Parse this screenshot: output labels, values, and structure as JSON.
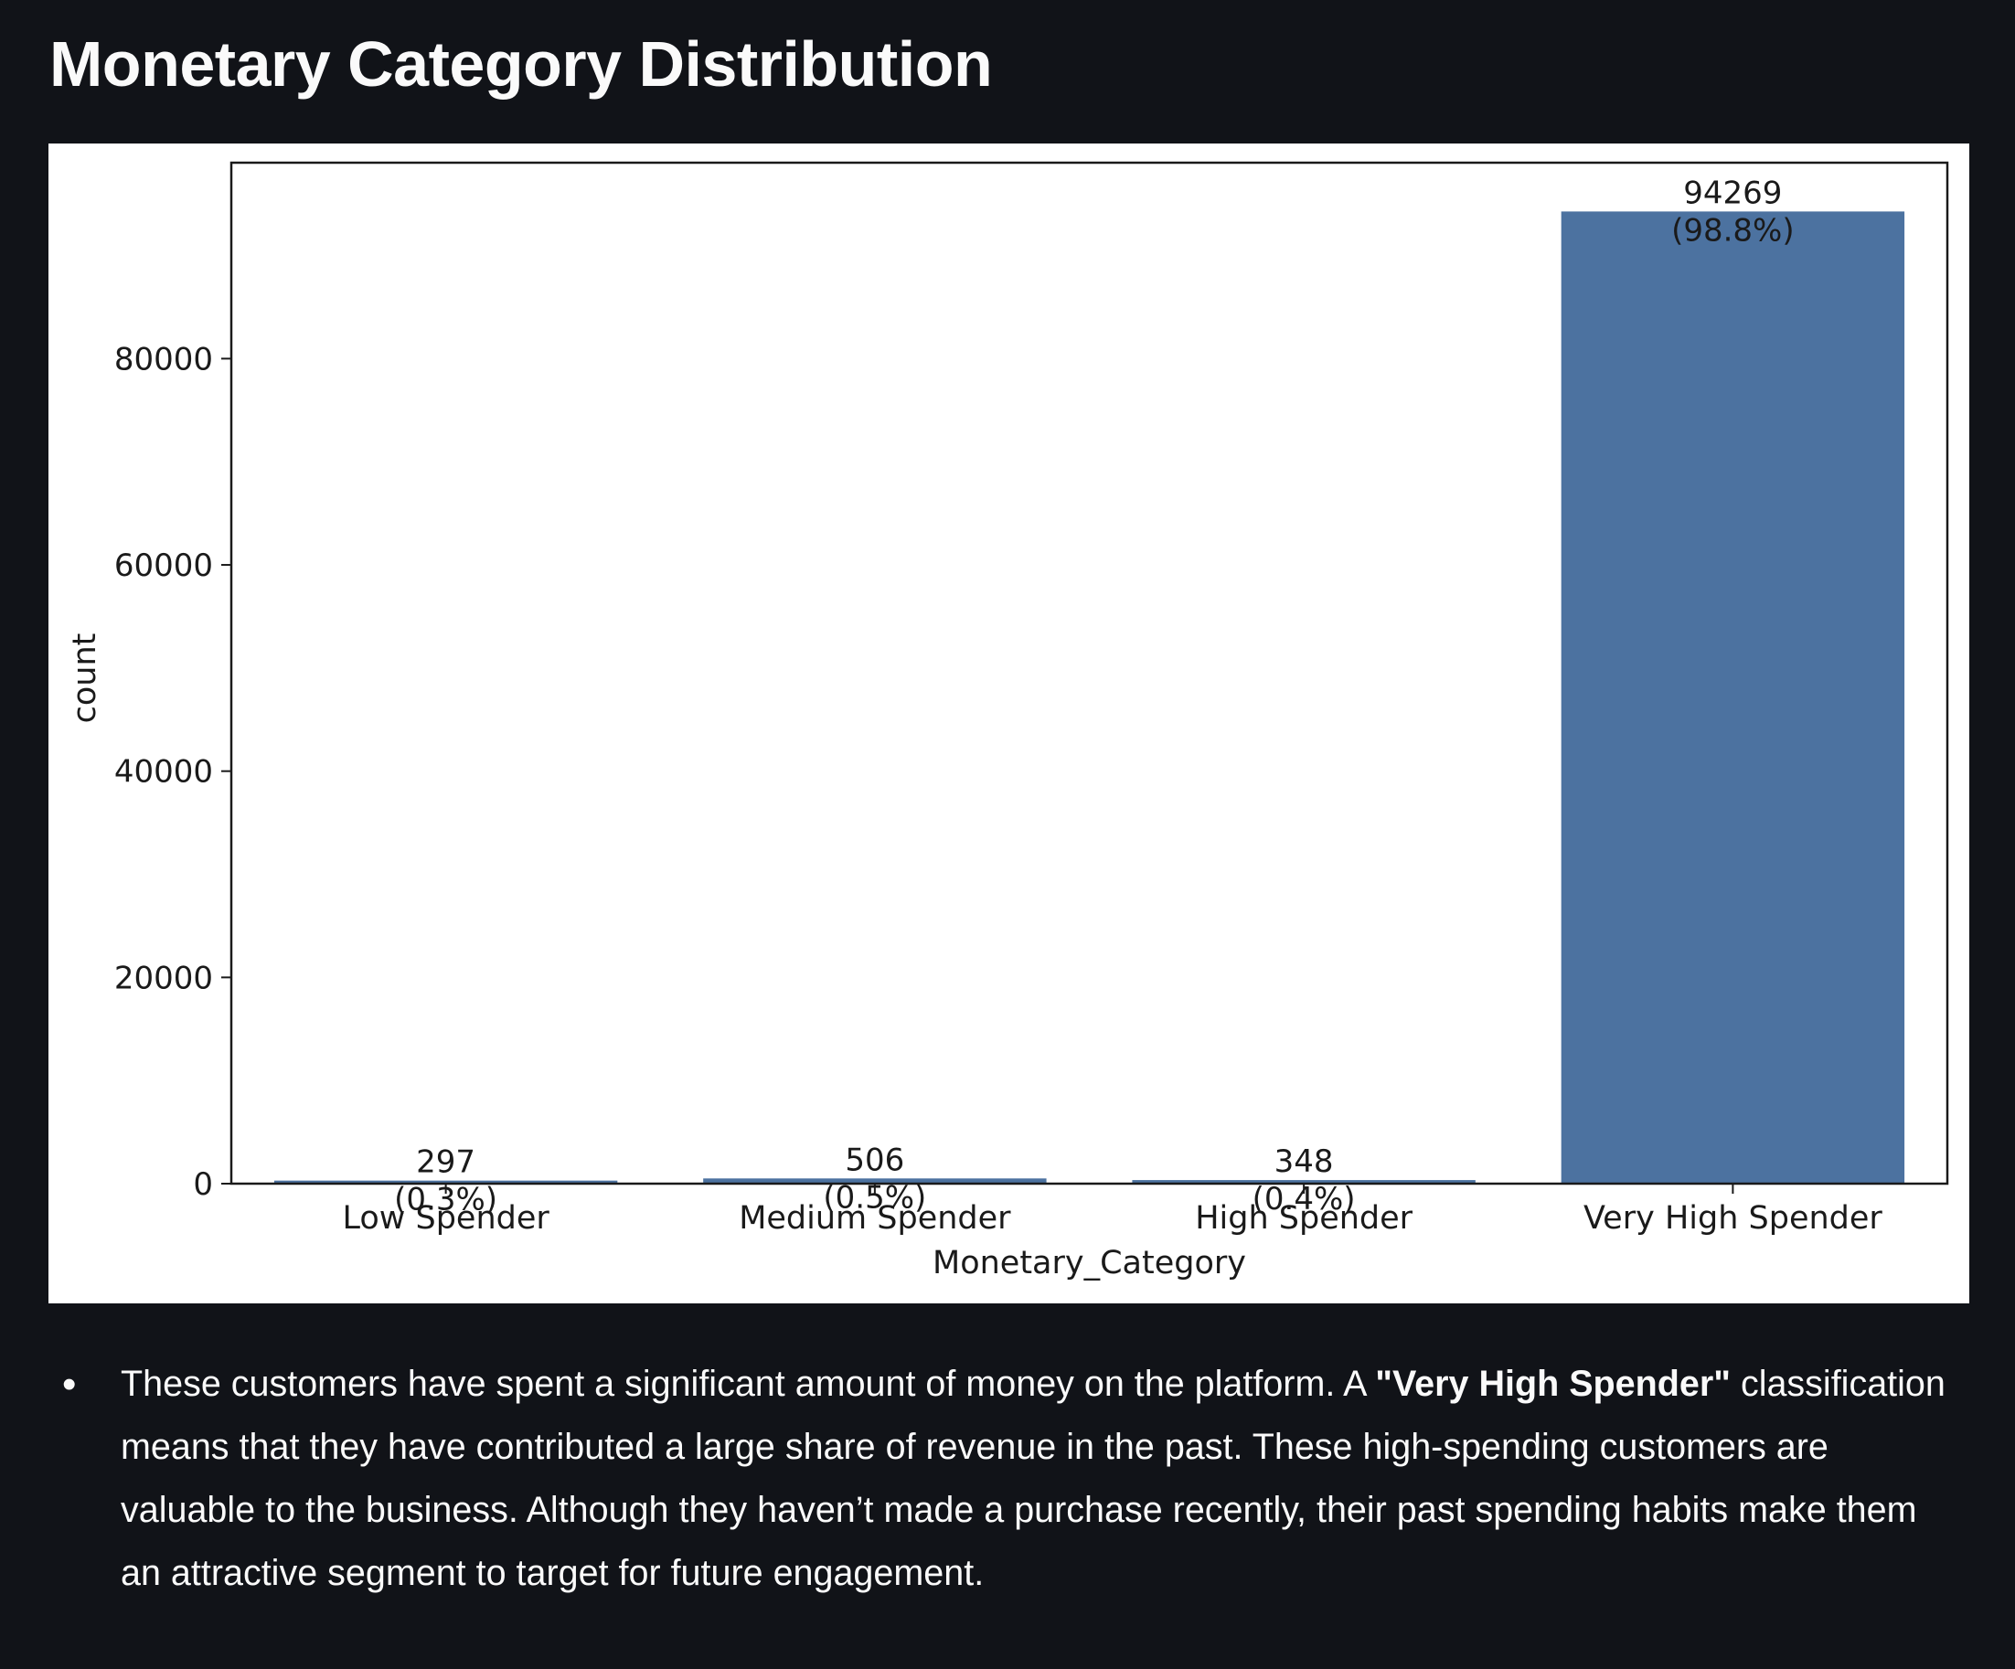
{
  "page": {
    "title": "Monetary Category Distribution"
  },
  "chart_data": {
    "type": "bar",
    "xlabel": "Monetary_Category",
    "ylabel": "count",
    "categories": [
      "Low Spender",
      "Medium Spender",
      "High Spender",
      "Very High Spender"
    ],
    "values": [
      297,
      506,
      348,
      94269
    ],
    "data_labels": [
      {
        "count": "297",
        "pct": "(0.3%)"
      },
      {
        "count": "506",
        "pct": "(0.5%)"
      },
      {
        "count": "348",
        "pct": "(0.4%)"
      },
      {
        "count": "94269",
        "pct": "(98.8%)"
      }
    ],
    "ylim": [
      0,
      99000
    ],
    "yticks": [
      0,
      20000,
      40000,
      60000,
      80000
    ],
    "bar_color": "#4c72a0",
    "grid": false
  },
  "insight": {
    "before_bold": "These customers have spent a significant amount of money on the platform. A ",
    "bold": "\"Very High Spender\"",
    "after_bold": " classification means that they have contributed a large share of revenue in the past. These high-spending customers are valuable to the business. Although they haven’t made a purchase recently, their past spending habits make them an attractive segment to target for future engagement."
  }
}
